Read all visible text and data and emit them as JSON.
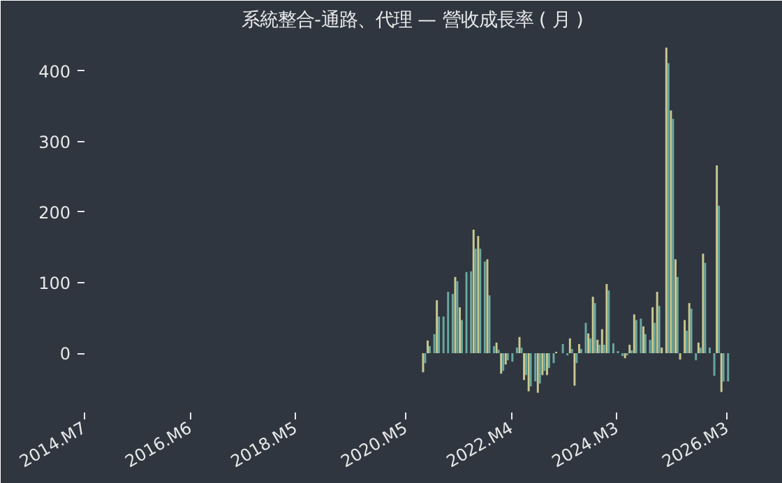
{
  "chart_data": {
    "type": "bar",
    "title": "系統整合-通路、代理 — 營收成長率 ( 月 )",
    "x": [
      "2020-09",
      "2020-10",
      "2020-11",
      "2020-12",
      "2021-01",
      "2021-02",
      "2021-03",
      "2021-04",
      "2021-05",
      "2021-06",
      "2021-07",
      "2021-08",
      "2021-09",
      "2021-10",
      "2021-11",
      "2021-12",
      "2022-01",
      "2022-02",
      "2022-03",
      "2022-04",
      "2022-05",
      "2022-06",
      "2022-07",
      "2022-08",
      "2022-09",
      "2022-10",
      "2022-11",
      "2022-12",
      "2023-01",
      "2023-02",
      "2023-03",
      "2023-04",
      "2023-05",
      "2023-06",
      "2023-07",
      "2023-08",
      "2023-09",
      "2023-10",
      "2023-11",
      "2023-12",
      "2024-01",
      "2024-02",
      "2024-03",
      "2024-04",
      "2024-05",
      "2024-06",
      "2024-07",
      "2024-08",
      "2024-09",
      "2024-10",
      "2024-11",
      "2024-12",
      "2025-01",
      "2025-02",
      "2025-03",
      "2025-04",
      "2025-05",
      "2025-06",
      "2025-07",
      "2025-08",
      "2025-09",
      "2025-10",
      "2025-11",
      "2025-12",
      "2026-01",
      "2026-02",
      "2026-03"
    ],
    "series": [
      {
        "color": "#c9c98f",
        "values": [
          -27,
          18,
          null,
          75,
          null,
          null,
          null,
          108,
          65,
          null,
          null,
          175,
          166,
          null,
          133,
          null,
          15,
          -29,
          -16,
          null,
          null,
          23,
          -38,
          -54,
          null,
          -56,
          -31,
          -31,
          null,
          2,
          null,
          null,
          21,
          -46,
          13,
          null,
          28,
          80,
          19,
          34,
          98,
          null,
          null,
          null,
          -7,
          12,
          55,
          null,
          38,
          null,
          65,
          87,
          8,
          433,
          344,
          133,
          -9,
          47,
          71,
          null,
          15,
          141,
          null,
          null,
          266,
          -55,
          null
        ]
      },
      {
        "color": "#6aa8a0",
        "values": [
          -14,
          10,
          27,
          52,
          52,
          87,
          84,
          102,
          47,
          115,
          116,
          148,
          148,
          130,
          82,
          10,
          5,
          -25,
          -10,
          -12,
          8,
          8,
          -31,
          -47,
          -40,
          -43,
          -25,
          -21,
          -14,
          null,
          13,
          -3,
          6,
          -14,
          6,
          43,
          21,
          71,
          12,
          12,
          89,
          14,
          3,
          -4,
          -3,
          4,
          47,
          49,
          27,
          19,
          43,
          67,
          null,
          411,
          332,
          108,
          null,
          32,
          63,
          -10,
          8,
          128,
          8,
          -32,
          209,
          -40,
          -40
        ]
      }
    ],
    "xlim": [
      "2014-07",
      "2026-06"
    ],
    "xticks": [
      {
        "value": "2014-07",
        "label": "2014.M7"
      },
      {
        "value": "2016-06",
        "label": "2016.M6"
      },
      {
        "value": "2018-05",
        "label": "2018.M5"
      },
      {
        "value": "2020-05",
        "label": "2020.M5"
      },
      {
        "value": "2022-04",
        "label": "2022.M4"
      },
      {
        "value": "2024-03",
        "label": "2024.M3"
      },
      {
        "value": "2026-03",
        "label": "2026.M3"
      }
    ],
    "ylim": [
      -84,
      446
    ],
    "yticks": [
      0,
      100,
      200,
      300,
      400
    ],
    "grid": false
  }
}
